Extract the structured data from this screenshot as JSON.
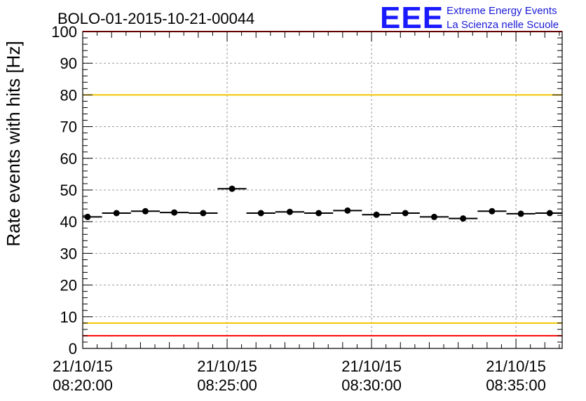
{
  "chart_data": {
    "type": "scatter",
    "title": "BOLO-01-2015-10-21-00044",
    "ylabel": "Rate events with hits [Hz]",
    "xlabel": "",
    "ylim": [
      0,
      100
    ],
    "y_ticks": [
      0,
      10,
      20,
      30,
      40,
      50,
      60,
      70,
      80,
      90,
      100
    ],
    "xlim_minutes": [
      0,
      16.6
    ],
    "x_ticks": [
      {
        "minute": 0,
        "date": "21/10/15",
        "time": "08:20:00"
      },
      {
        "minute": 5,
        "date": "21/10/15",
        "time": "08:25:00"
      },
      {
        "minute": 10,
        "date": "21/10/15",
        "time": "08:30:00"
      },
      {
        "minute": 15,
        "date": "21/10/15",
        "time": "08:35:00"
      }
    ],
    "grid": true,
    "reference_lines": [
      {
        "y": 80,
        "color": "#f2c500"
      },
      {
        "y": 8,
        "color": "#f2c500"
      },
      {
        "y": 100,
        "color": "#ff0000"
      },
      {
        "y": 4,
        "color": "#ff0000"
      }
    ],
    "bin_width_minutes": 1.0,
    "points": [
      {
        "x": 0.17,
        "y": 41.5
      },
      {
        "x": 1.17,
        "y": 42.7
      },
      {
        "x": 2.17,
        "y": 43.3
      },
      {
        "x": 3.17,
        "y": 42.9
      },
      {
        "x": 4.17,
        "y": 42.7
      },
      {
        "x": 5.17,
        "y": 50.4
      },
      {
        "x": 6.17,
        "y": 42.7
      },
      {
        "x": 7.17,
        "y": 43.1
      },
      {
        "x": 8.17,
        "y": 42.7
      },
      {
        "x": 9.17,
        "y": 43.5
      },
      {
        "x": 10.17,
        "y": 42.2
      },
      {
        "x": 11.17,
        "y": 42.7
      },
      {
        "x": 12.17,
        "y": 41.5
      },
      {
        "x": 13.17,
        "y": 41.0
      },
      {
        "x": 14.17,
        "y": 43.3
      },
      {
        "x": 15.17,
        "y": 42.5
      },
      {
        "x": 16.17,
        "y": 42.7
      }
    ]
  },
  "logo": {
    "mark": "EEE",
    "line1": "Extreme Energy Events",
    "line2": "La Scienza nelle Scuole",
    "color": "#1a1aff"
  }
}
